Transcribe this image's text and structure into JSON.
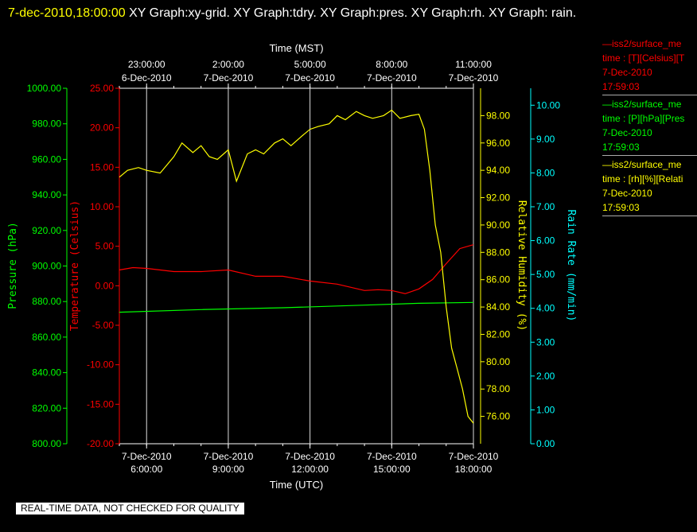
{
  "header": {
    "timestamp": "7-dec-2010,18:00:00",
    "title": " XY Graph:xy-grid.  XY Graph:tdry.  XY Graph:pres.  XY Graph:rh.  XY Graph: rain."
  },
  "legend": [
    {
      "line1": "—iss2/surface_me",
      "line2": "time : [T][Celsius][T",
      "line3": "7-Dec-2010",
      "line4": "17:59:03",
      "color": "#ff0000"
    },
    {
      "line1": "—iss2/surface_me",
      "line2": "time : [P][hPa][Pres",
      "line3": "7-Dec-2010",
      "line4": "17:59:03",
      "color": "#00ff00"
    },
    {
      "line1": "—iss2/surface_me",
      "line2": "time : [rh][%][Relati",
      "line3": "7-Dec-2010",
      "line4": "17:59:03",
      "color": "#ffff00"
    }
  ],
  "footer": {
    "note": "REAL-TIME DATA, NOT CHECKED FOR QUALITY"
  },
  "chart_data": {
    "type": "line",
    "grid": true,
    "colors": {
      "temperature": "#ff0000",
      "pressure": "#00ff00",
      "humidity": "#ffff00",
      "rain": "#00ffff"
    },
    "x_bottom": {
      "label": "Time (UTC)",
      "range": [
        "7-Dec-2010 05:00",
        "7-Dec-2010 18:00"
      ],
      "ticks": [
        {
          "date": "7-Dec-2010",
          "time": "6:00:00"
        },
        {
          "date": "7-Dec-2010",
          "time": "9:00:00"
        },
        {
          "date": "7-Dec-2010",
          "time": "12:00:00"
        },
        {
          "date": "7-Dec-2010",
          "time": "15:00:00"
        },
        {
          "date": "7-Dec-2010",
          "time": "18:00:00"
        }
      ]
    },
    "x_top": {
      "label": "Time (MST)",
      "ticks": [
        {
          "date": "6-Dec-2010",
          "time": "23:00:00"
        },
        {
          "date": "7-Dec-2010",
          "time": "2:00:00"
        },
        {
          "date": "7-Dec-2010",
          "time": "5:00:00"
        },
        {
          "date": "7-Dec-2010",
          "time": "8:00:00"
        },
        {
          "date": "7-Dec-2010",
          "time": "11:00:00"
        }
      ]
    },
    "y_pressure": {
      "label": "Pressure (hPa)",
      "range": [
        800,
        1000
      ],
      "ticks": [
        "800.00",
        "820.00",
        "840.00",
        "860.00",
        "880.00",
        "900.00",
        "920.00",
        "940.00",
        "960.00",
        "980.00",
        "1000.00"
      ]
    },
    "y_temperature": {
      "label": "Temperature (Celsius)",
      "range": [
        -20,
        25
      ],
      "ticks": [
        "-20.00",
        "-15.00",
        "-10.00",
        "-5.00",
        "0.00",
        "5.00",
        "10.00",
        "15.00",
        "20.00",
        "25.00"
      ]
    },
    "y_humidity": {
      "label": "Relative Humidity (%)",
      "range": [
        74,
        100
      ],
      "ticks": [
        "76.00",
        "78.00",
        "80.00",
        "82.00",
        "84.00",
        "86.00",
        "88.00",
        "90.00",
        "92.00",
        "94.00",
        "96.00",
        "98.00"
      ]
    },
    "y_rain": {
      "label": "Rain Rate (mm/min)",
      "range": [
        0,
        10.5
      ],
      "ticks": [
        "0.00",
        "1.00",
        "2.00",
        "3.00",
        "4.00",
        "5.00",
        "6.00",
        "7.00",
        "8.00",
        "9.00",
        "10.00"
      ]
    },
    "series": [
      {
        "key": "temperature",
        "axis": "y_temperature",
        "x": [
          5.0,
          5.5,
          6.0,
          7.0,
          8.0,
          9.0,
          10.0,
          11.0,
          12.0,
          13.0,
          14.0,
          14.5,
          15.0,
          15.5,
          16.0,
          16.5,
          17.0,
          17.5,
          18.0
        ],
        "y": [
          2.0,
          2.3,
          2.2,
          1.8,
          1.8,
          2.0,
          1.2,
          1.2,
          0.6,
          0.2,
          -0.6,
          -0.5,
          -0.6,
          -1.0,
          -0.4,
          0.8,
          2.8,
          4.7,
          5.2
        ]
      },
      {
        "key": "pressure",
        "axis": "y_pressure",
        "x": [
          5.0,
          8.0,
          11.0,
          14.0,
          16.0,
          18.0
        ],
        "y": [
          874.0,
          875.5,
          876.5,
          878.0,
          879.0,
          879.5
        ]
      },
      {
        "key": "humidity",
        "axis": "y_humidity",
        "x": [
          5.0,
          5.3,
          5.7,
          6.0,
          6.5,
          7.0,
          7.3,
          7.7,
          8.0,
          8.3,
          8.6,
          9.0,
          9.3,
          9.7,
          10.0,
          10.3,
          10.7,
          11.0,
          11.3,
          11.7,
          12.0,
          12.3,
          12.7,
          13.0,
          13.3,
          13.7,
          14.0,
          14.3,
          14.7,
          15.0,
          15.3,
          15.7,
          16.0,
          16.2,
          16.4,
          16.6,
          16.8,
          17.0,
          17.2,
          17.4,
          17.6,
          17.8,
          18.0
        ],
        "y": [
          93.5,
          94.0,
          94.2,
          94.0,
          93.8,
          95.0,
          96.0,
          95.3,
          95.8,
          95.0,
          94.8,
          95.5,
          93.2,
          95.2,
          95.5,
          95.2,
          96.0,
          96.3,
          95.8,
          96.5,
          97.0,
          97.2,
          97.4,
          98.0,
          97.7,
          98.3,
          98.0,
          97.8,
          98.0,
          98.4,
          97.8,
          98.0,
          98.1,
          97.0,
          94.0,
          90.0,
          88.0,
          84.0,
          81.0,
          79.5,
          78.0,
          76.0,
          75.5
        ]
      }
    ]
  }
}
